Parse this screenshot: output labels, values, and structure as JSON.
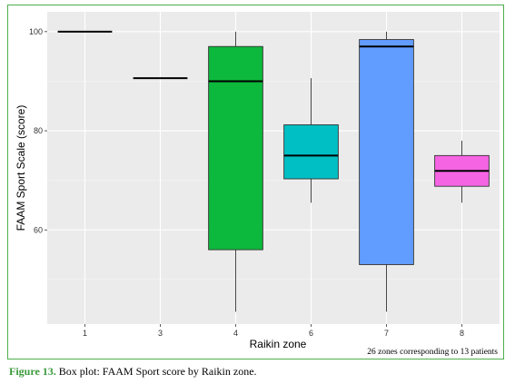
{
  "caption": {
    "label": "Figure 13.",
    "text": " Box plot: FAAM Sport score by Raikin zone."
  },
  "colors": {
    "frame_border": "#4caf4a",
    "panel_bg": "#ebebeb",
    "grid_major": "#ffffff",
    "caption_label": "#3a9a3a"
  },
  "chart_data": {
    "type": "boxplot",
    "title": "",
    "xlabel": "Raikin zone",
    "ylabel": "FAAM Sport Scale (score)",
    "ylim": [
      41,
      104
    ],
    "yticks": [
      60,
      80,
      100
    ],
    "grid": true,
    "categories": [
      "1",
      "3",
      "4",
      "6",
      "7",
      "8"
    ],
    "boxes": [
      {
        "category": "1",
        "min": 100,
        "q1": 100,
        "median": 100,
        "q3": 100,
        "max": 100,
        "fill": "#f8766d"
      },
      {
        "category": "3",
        "min": 90.6,
        "q1": 90.6,
        "median": 90.6,
        "q3": 90.6,
        "max": 90.6,
        "fill": "#b79f00"
      },
      {
        "category": "4",
        "min": 43.5,
        "q1": 56,
        "median": 90,
        "q3": 97,
        "max": 100,
        "fill": "#0cb93c"
      },
      {
        "category": "6",
        "min": 65.5,
        "q1": 70.3,
        "median": 75,
        "q3": 81.2,
        "max": 90.6,
        "fill": "#00bfc4"
      },
      {
        "category": "7",
        "min": 43.5,
        "q1": 53,
        "median": 97,
        "q3": 98.4,
        "max": 100,
        "fill": "#619cff"
      },
      {
        "category": "8",
        "min": 65.5,
        "q1": 68.8,
        "median": 71.9,
        "q3": 75,
        "max": 78,
        "fill": "#f564e3"
      }
    ],
    "annotation": "26 zones corresponding to 13 patients"
  }
}
